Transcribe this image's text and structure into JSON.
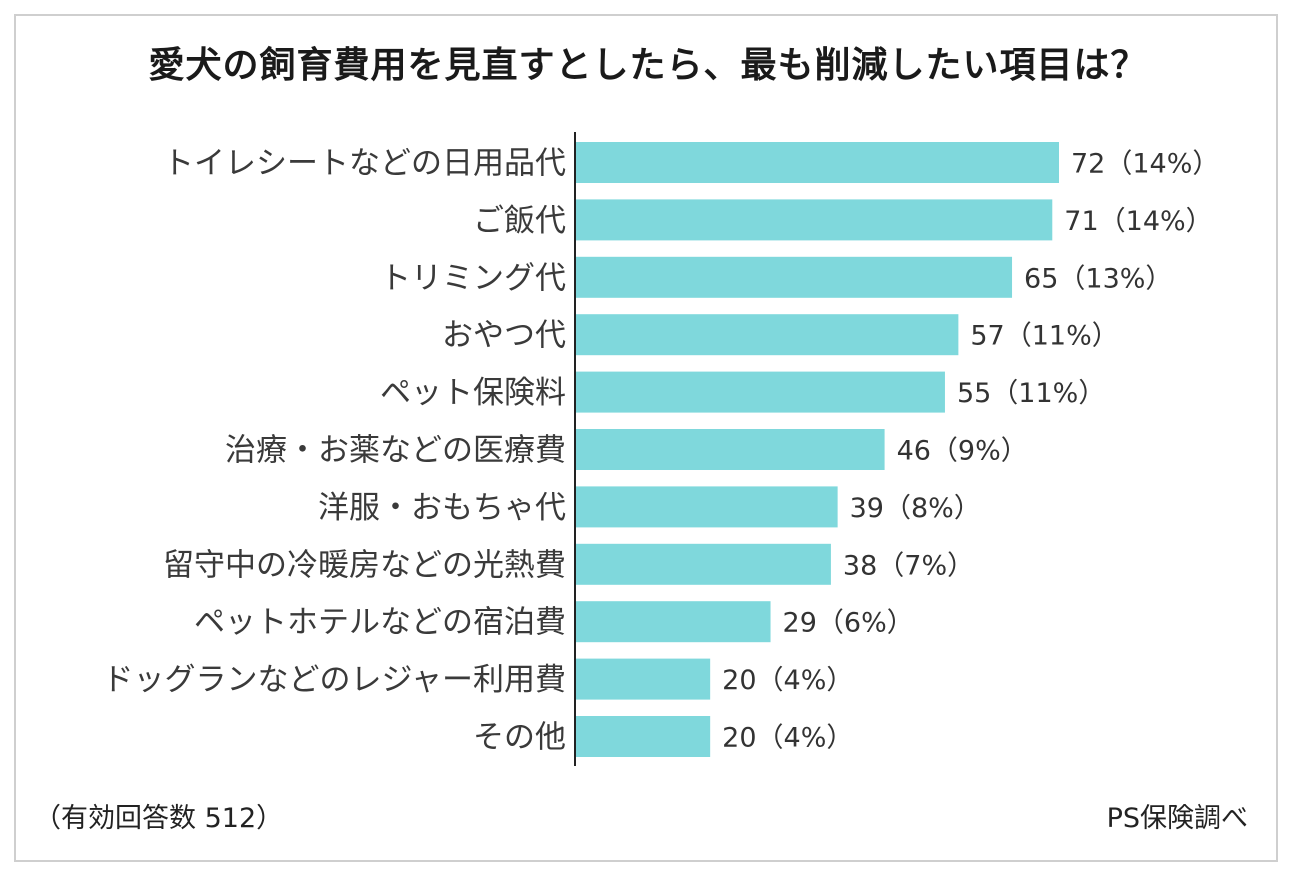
{
  "chart_data": {
    "type": "bar",
    "orientation": "horizontal",
    "title": "愛犬の飼育費用を見直すとしたら、最も削減したい項目は？",
    "categories": [
      "トイレシートなどの日用品代",
      "ご飯代",
      "トリミング代",
      "おやつ代",
      "ペット保険料",
      "治療・お薬などの医療費",
      "洋服・おもちゃ代",
      "留守中の冷暖房などの光熱費",
      "ペットホテルなどの宿泊費",
      "ドッグランなどのレジャー利用費",
      "その他"
    ],
    "values": [
      72,
      71,
      65,
      57,
      55,
      46,
      39,
      38,
      29,
      20,
      20
    ],
    "value_labels": [
      "72（14%）",
      "71（14%）",
      "65（13%）",
      "57（11%）",
      "55（11%）",
      "46（9%）",
      "39（8%）",
      "38（7%）",
      "29（6%）",
      "20（4%）",
      "20（4%）"
    ],
    "bar_color": "#7fd8dc",
    "xlim": [
      0,
      72
    ],
    "grid": false
  },
  "footnote": "（有効回答数 512）",
  "source": "PS保険調べ"
}
